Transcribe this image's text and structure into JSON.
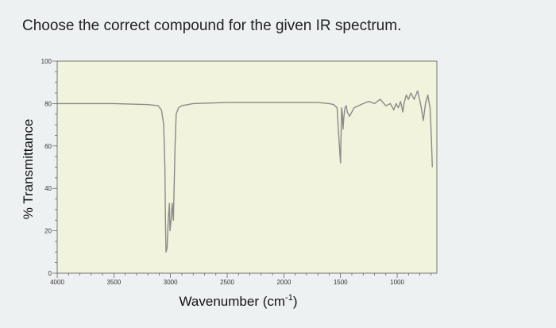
{
  "question": "Choose the correct compound for the given IR spectrum.",
  "chart_data": {
    "type": "line",
    "title": "",
    "ylabel": "% Transmittance",
    "xlabel": "Wavenumber (cm",
    "xlabel_sup": "-1",
    "xlabel_suffix": ")",
    "xlim": [
      4000,
      650
    ],
    "ylim": [
      0,
      100
    ],
    "x_ticks": [
      4000,
      3500,
      3000,
      2500,
      2000,
      1500,
      1000
    ],
    "y_ticks": [
      0,
      20,
      40,
      60,
      80,
      100
    ],
    "grid": false,
    "colors": {
      "plot_bg": "#f1f3dc",
      "line": "#8a8a8a",
      "axis": "#555555"
    },
    "series": [
      {
        "x": [
          4000,
          3500,
          3200,
          3110,
          3080,
          3060,
          3050,
          3045,
          3040,
          3030,
          3020,
          3010,
          3005,
          2995,
          2985,
          2975,
          2960,
          2950,
          2930,
          2900,
          2800,
          2500,
          2200,
          2000,
          1800,
          1700,
          1600,
          1560,
          1530,
          1510,
          1500,
          1495,
          1490,
          1485,
          1478,
          1470,
          1460,
          1450,
          1440,
          1420,
          1380,
          1300,
          1250,
          1200,
          1150,
          1100,
          1060,
          1030,
          1010,
          990,
          970,
          950,
          940,
          920,
          900,
          880,
          850,
          820,
          790,
          770,
          750,
          730,
          710,
          700,
          690
        ],
        "y": [
          80,
          80,
          79.5,
          79,
          77,
          70,
          50,
          25,
          10,
          12,
          25,
          33,
          20,
          25,
          33,
          25,
          60,
          75,
          78,
          79,
          80,
          80.5,
          80.5,
          80.5,
          80.5,
          80.5,
          80,
          79.5,
          78,
          60,
          52,
          65,
          78,
          76,
          68,
          74,
          78,
          79,
          76,
          74,
          78,
          80,
          81,
          80,
          82,
          79,
          80,
          77,
          80,
          78,
          81,
          76,
          80,
          84,
          82,
          85,
          82,
          86,
          79,
          72,
          80,
          84,
          78,
          66,
          50
        ]
      }
    ]
  }
}
